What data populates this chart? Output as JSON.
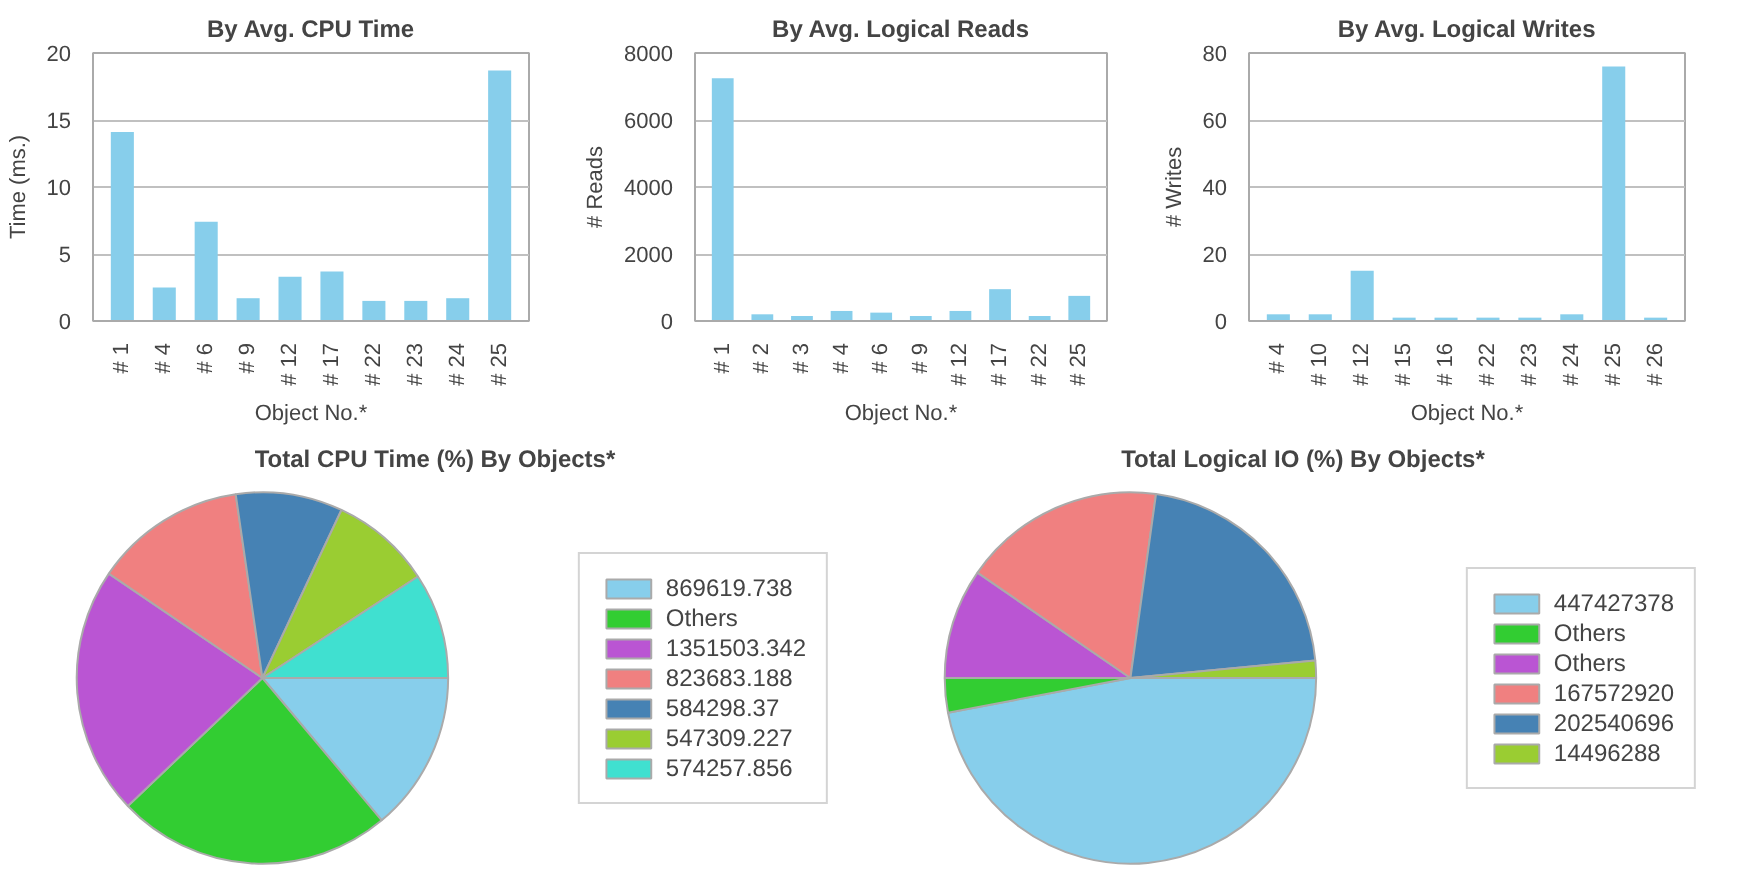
{
  "chart_data": [
    {
      "type": "bar",
      "title": "By Avg. CPU Time",
      "xlabel": "Object No.*",
      "ylabel": "Time (ms.)",
      "categories": [
        "# 1",
        "# 4",
        "# 6",
        "# 9",
        "# 12",
        "# 17",
        "# 22",
        "# 23",
        "# 24",
        "# 25"
      ],
      "values": [
        14.1,
        2.5,
        7.4,
        1.7,
        3.3,
        3.7,
        1.5,
        1.5,
        1.7,
        18.7
      ],
      "color": "#87ceeb",
      "ylim": [
        0,
        20
      ],
      "yticks": [
        0,
        5,
        10,
        15,
        20
      ],
      "grid": "y"
    },
    {
      "type": "bar",
      "title": "By Avg. Logical Reads",
      "xlabel": "Object No.*",
      "ylabel": "# Reads",
      "categories": [
        "# 1",
        "# 2",
        "# 3",
        "# 4",
        "# 6",
        "# 9",
        "# 12",
        "# 17",
        "# 22",
        "# 25"
      ],
      "values": [
        7250,
        200,
        150,
        300,
        250,
        150,
        300,
        950,
        150,
        750
      ],
      "color": "#87ceeb",
      "ylim": [
        0,
        8000
      ],
      "yticks": [
        0,
        2000,
        4000,
        6000,
        8000
      ],
      "grid": "y"
    },
    {
      "type": "bar",
      "title": "By Avg. Logical Writes",
      "xlabel": "Object No.*",
      "ylabel": "# Writes",
      "categories": [
        "# 4",
        "# 10",
        "# 12",
        "# 15",
        "# 16",
        "# 22",
        "# 23",
        "# 24",
        "# 25",
        "# 26"
      ],
      "values": [
        2,
        2,
        15,
        1,
        1,
        1,
        1,
        2,
        76,
        1
      ],
      "color": "#87ceeb",
      "ylim": [
        0,
        80
      ],
      "yticks": [
        0,
        20,
        40,
        60,
        80
      ],
      "grid": "y"
    },
    {
      "type": "pie",
      "title": "Total CPU Time (%) By Objects*",
      "categories": [
        "869619.738",
        "Others",
        "1351503.342",
        "823683.188",
        "584298.37",
        "547309.227",
        "574257.856"
      ],
      "values": [
        13.9,
        24.0,
        21.6,
        13.2,
        9.3,
        8.8,
        9.2
      ],
      "colors": [
        "#87ceeb",
        "#32cd32",
        "#ba55d3",
        "#f08080",
        "#4682b4",
        "#9acd32",
        "#40e0d0"
      ],
      "legend": "right"
    },
    {
      "type": "pie",
      "title": "Total Logical IO (%) By Objects*",
      "categories": [
        "447427378",
        "Others",
        "Others",
        "167572920",
        "202540696",
        "14496288"
      ],
      "values": [
        47.0,
        3.0,
        9.6,
        17.6,
        21.3,
        1.5
      ],
      "colors": [
        "#87ceeb",
        "#32cd32",
        "#ba55d3",
        "#f08080",
        "#4682b4",
        "#9acd32"
      ],
      "legend": "right"
    }
  ]
}
